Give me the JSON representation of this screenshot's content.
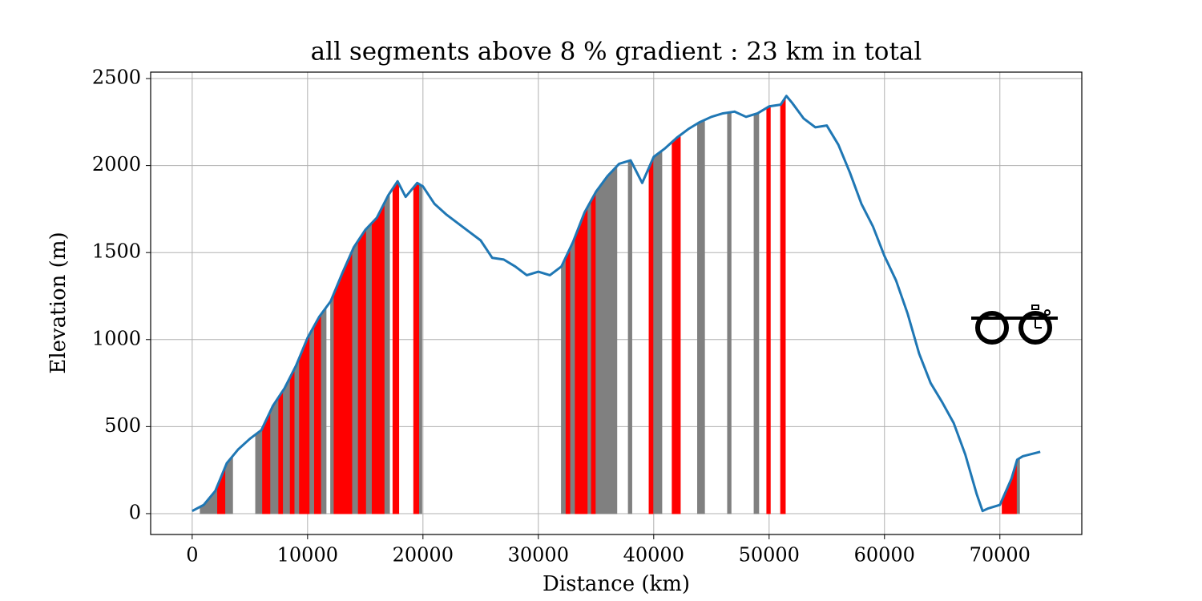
{
  "chart_data": {
    "type": "line",
    "title": "all segments above 8 % gradient : 23 km in total",
    "x_label": "Distance (km)",
    "y_label": "Elevation (m)",
    "xlim": [
      -3600,
      77100
    ],
    "ylim": [
      -120,
      2537
    ],
    "xticks": [
      0,
      10000,
      20000,
      30000,
      40000,
      50000,
      60000,
      70000
    ],
    "yticks": [
      0,
      500,
      1000,
      1500,
      2000,
      2500
    ],
    "grid": true,
    "color": "#1f77b4",
    "x": [
      0,
      1000,
      2000,
      3000,
      3500,
      4000,
      5000,
      6000,
      7000,
      8000,
      9000,
      10000,
      11000,
      12000,
      13000,
      14000,
      15000,
      16000,
      17000,
      17800,
      18500,
      19500,
      20000,
      21000,
      22000,
      23000,
      24000,
      25000,
      26000,
      27000,
      28000,
      29000,
      30000,
      31000,
      32000,
      33000,
      34000,
      35000,
      36000,
      37000,
      38000,
      39000,
      40000,
      41000,
      42000,
      43000,
      44000,
      45000,
      46000,
      47000,
      48000,
      49000,
      50000,
      51000,
      51500,
      52000,
      53000,
      54000,
      55000,
      56000,
      57000,
      58000,
      59000,
      60000,
      61000,
      62000,
      63000,
      64000,
      65000,
      66000,
      67000,
      68000,
      68500,
      69000,
      70000,
      71000,
      71500,
      72000,
      73500
    ],
    "values": [
      15,
      50,
      130,
      290,
      330,
      370,
      430,
      480,
      620,
      720,
      850,
      1010,
      1130,
      1220,
      1380,
      1530,
      1630,
      1700,
      1830,
      1910,
      1820,
      1900,
      1880,
      1780,
      1720,
      1670,
      1620,
      1570,
      1470,
      1460,
      1420,
      1370,
      1390,
      1370,
      1420,
      1560,
      1730,
      1850,
      1940,
      2010,
      2030,
      1900,
      2050,
      2100,
      2160,
      2210,
      2250,
      2280,
      2300,
      2310,
      2280,
      2300,
      2340,
      2350,
      2400,
      2360,
      2270,
      2220,
      2230,
      2120,
      1960,
      1780,
      1650,
      1480,
      1340,
      1150,
      920,
      750,
      640,
      520,
      340,
      110,
      15,
      30,
      50,
      200,
      310,
      330,
      355
    ],
    "segments": [
      {
        "start": 700,
        "end": 2200,
        "color": "gray"
      },
      {
        "start": 2200,
        "end": 2900,
        "color": "red"
      },
      {
        "start": 2900,
        "end": 3500,
        "color": "gray"
      },
      {
        "start": 5500,
        "end": 6100,
        "color": "gray"
      },
      {
        "start": 6100,
        "end": 6800,
        "color": "red"
      },
      {
        "start": 6800,
        "end": 7500,
        "color": "gray"
      },
      {
        "start": 7500,
        "end": 7900,
        "color": "red"
      },
      {
        "start": 7900,
        "end": 8500,
        "color": "gray"
      },
      {
        "start": 8500,
        "end": 8900,
        "color": "red"
      },
      {
        "start": 8900,
        "end": 9300,
        "color": "gray"
      },
      {
        "start": 9300,
        "end": 10200,
        "color": "red"
      },
      {
        "start": 10200,
        "end": 10600,
        "color": "gray"
      },
      {
        "start": 10600,
        "end": 11200,
        "color": "red"
      },
      {
        "start": 11200,
        "end": 11600,
        "color": "gray"
      },
      {
        "start": 12000,
        "end": 12300,
        "color": "gray"
      },
      {
        "start": 12300,
        "end": 13900,
        "color": "red"
      },
      {
        "start": 13900,
        "end": 14400,
        "color": "gray"
      },
      {
        "start": 14400,
        "end": 15100,
        "color": "red"
      },
      {
        "start": 15100,
        "end": 15600,
        "color": "gray"
      },
      {
        "start": 15600,
        "end": 16700,
        "color": "red"
      },
      {
        "start": 16700,
        "end": 17100,
        "color": "gray"
      },
      {
        "start": 17400,
        "end": 17900,
        "color": "red"
      },
      {
        "start": 19200,
        "end": 19700,
        "color": "red"
      },
      {
        "start": 19700,
        "end": 19900,
        "color": "gray"
      },
      {
        "start": 32000,
        "end": 32400,
        "color": "gray"
      },
      {
        "start": 32400,
        "end": 32800,
        "color": "red"
      },
      {
        "start": 32800,
        "end": 33200,
        "color": "gray"
      },
      {
        "start": 33200,
        "end": 34300,
        "color": "red"
      },
      {
        "start": 34300,
        "end": 34600,
        "color": "gray"
      },
      {
        "start": 34600,
        "end": 35000,
        "color": "red"
      },
      {
        "start": 35000,
        "end": 36800,
        "color": "gray"
      },
      {
        "start": 37800,
        "end": 38100,
        "color": "gray"
      },
      {
        "start": 39600,
        "end": 40000,
        "color": "red"
      },
      {
        "start": 40000,
        "end": 40700,
        "color": "gray"
      },
      {
        "start": 41600,
        "end": 42300,
        "color": "red"
      },
      {
        "start": 43800,
        "end": 44400,
        "color": "gray"
      },
      {
        "start": 46400,
        "end": 46700,
        "color": "gray"
      },
      {
        "start": 48700,
        "end": 49100,
        "color": "gray"
      },
      {
        "start": 49800,
        "end": 50100,
        "color": "red"
      },
      {
        "start": 51000,
        "end": 51400,
        "color": "red"
      },
      {
        "start": 70200,
        "end": 71500,
        "color": "red"
      },
      {
        "start": 71500,
        "end": 71700,
        "color": "gray"
      }
    ]
  }
}
